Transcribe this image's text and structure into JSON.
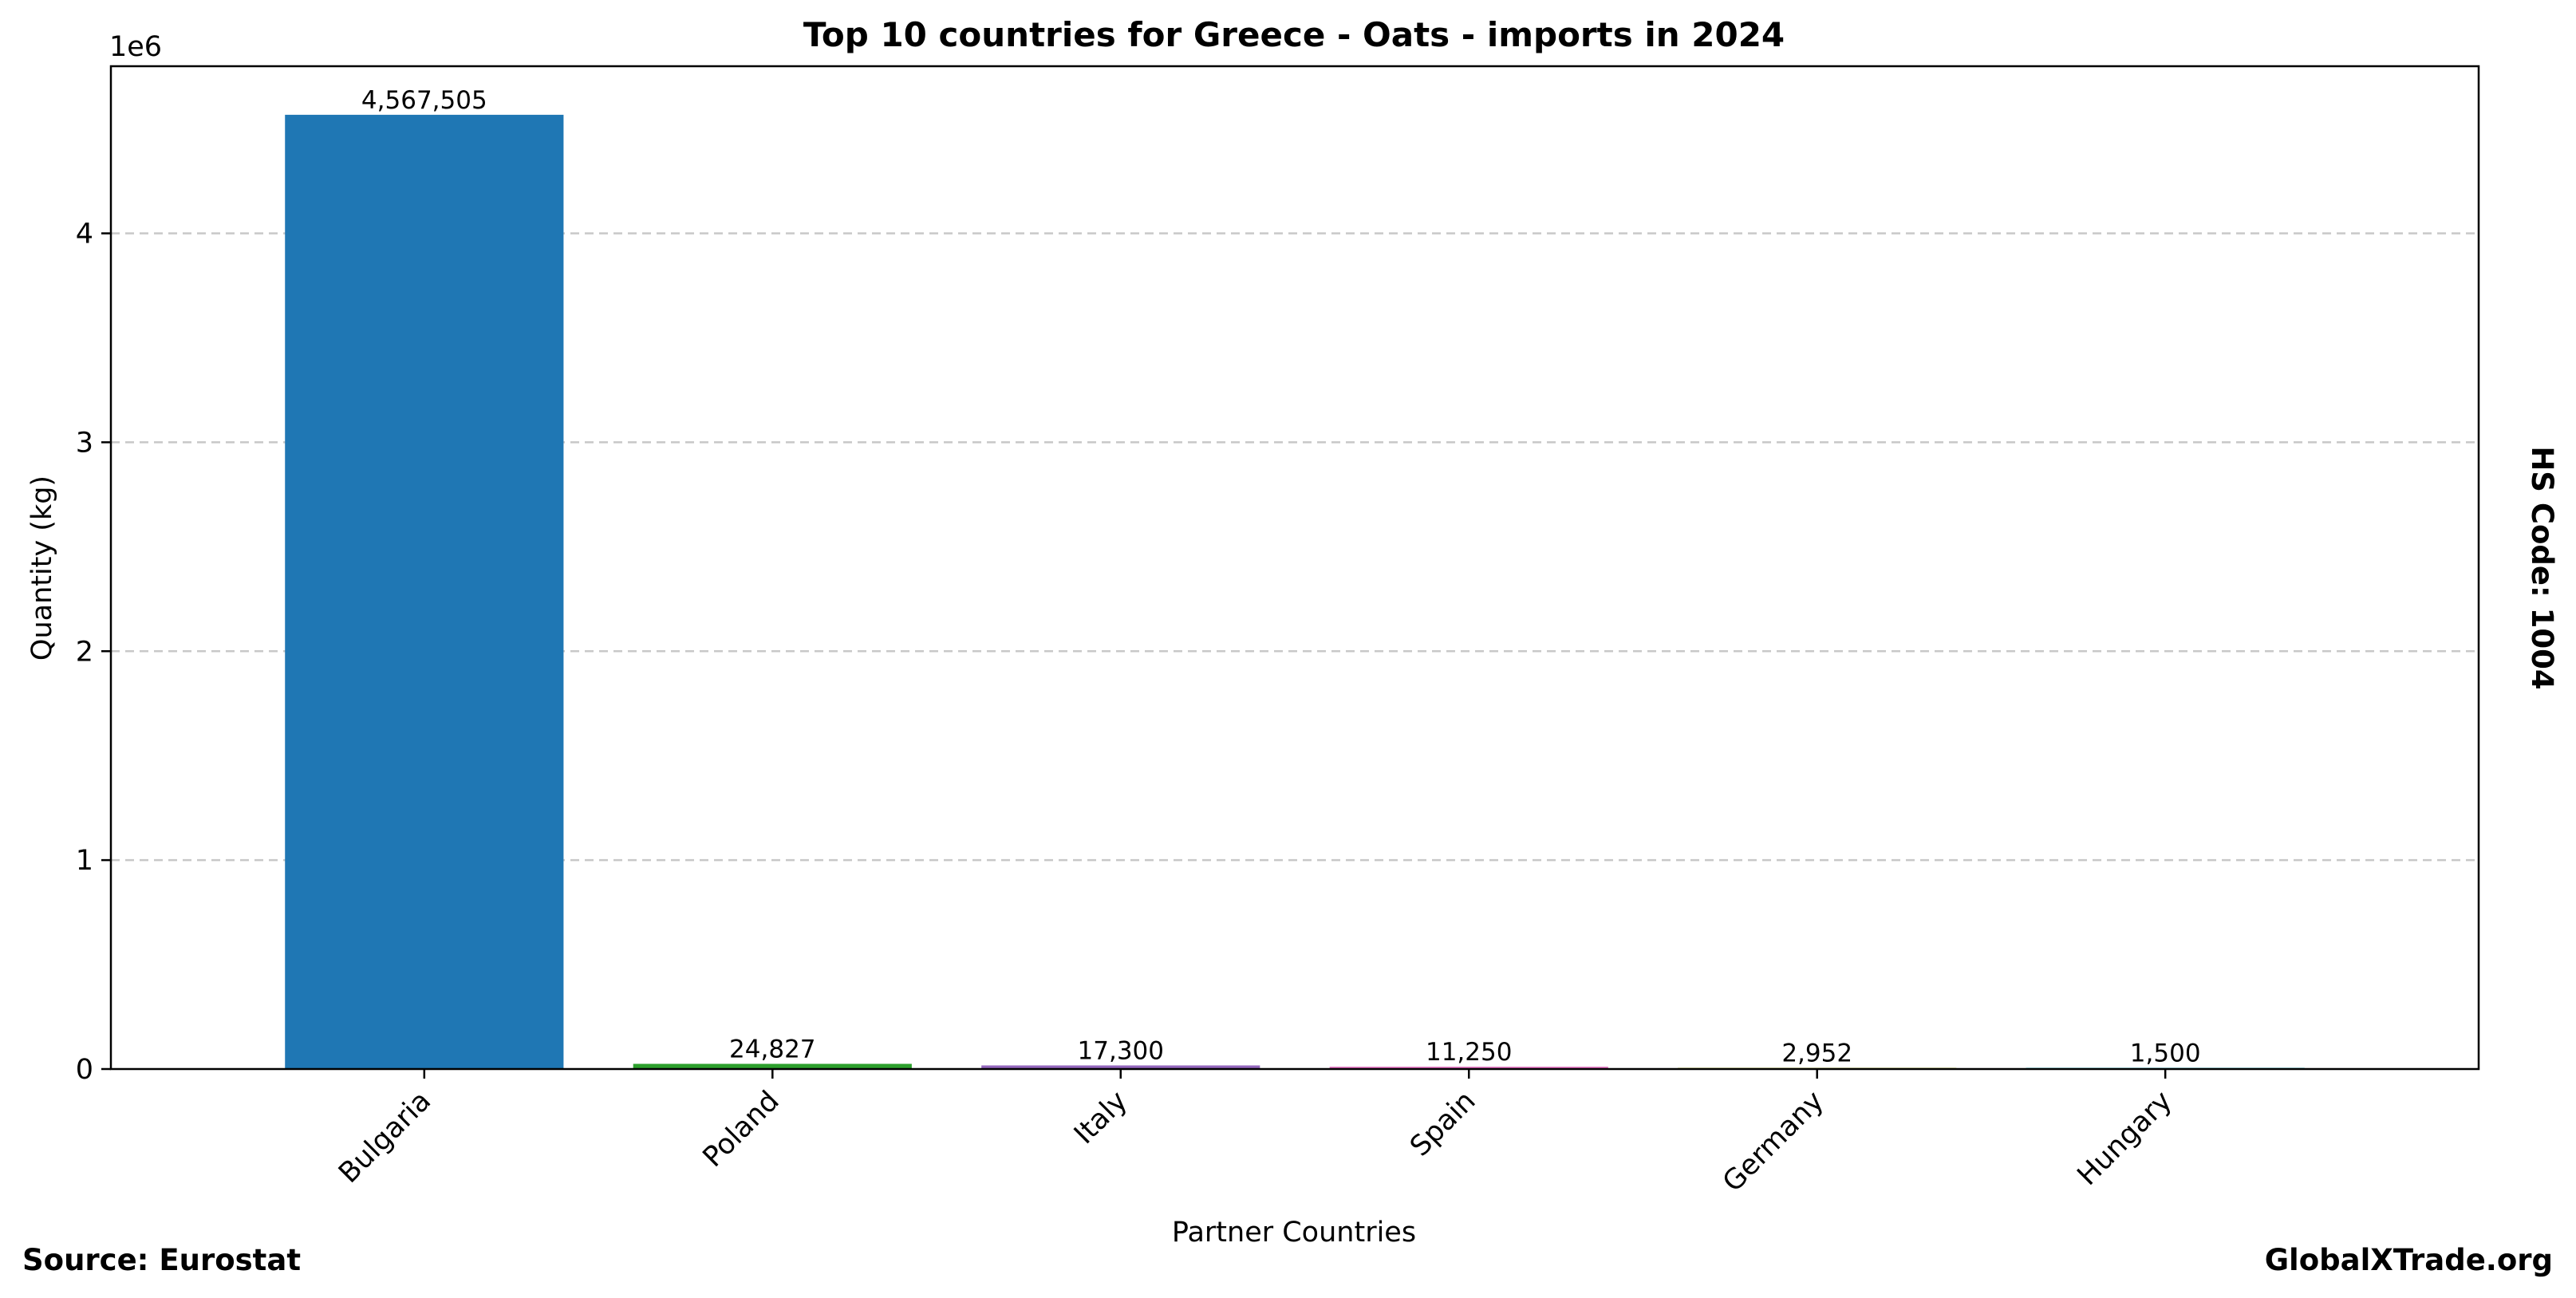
{
  "chart_data": {
    "type": "bar",
    "title": "Top 10 countries for Greece - Oats - imports in 2024",
    "xlabel": "Partner Countries",
    "ylabel": "Quantity (kg)",
    "y_offset_label": "1e6",
    "categories": [
      "Bulgaria",
      "Poland",
      "Italy",
      "Spain",
      "Germany",
      "Hungary"
    ],
    "values": [
      4567505,
      24827,
      17300,
      11250,
      2952,
      1500
    ],
    "value_labels": [
      "4,567,505",
      "24,827",
      "17,300",
      "11,250",
      "2,952",
      "1,500"
    ],
    "colors": [
      "#1f77b4",
      "#2ca02c",
      "#9467bd",
      "#e377c2",
      "#bcbd22",
      "#17becf"
    ],
    "ylim": [
      0,
      4800000
    ],
    "yticks": [
      0,
      1000000,
      2000000,
      3000000,
      4000000
    ],
    "ytick_labels": [
      "0",
      "1",
      "2",
      "3",
      "4"
    ],
    "grid": "horizontal dashed",
    "side_label": "HS Code: 1004",
    "source": "Source: Eurostat",
    "watermark": "GlobalXTrade.org"
  }
}
